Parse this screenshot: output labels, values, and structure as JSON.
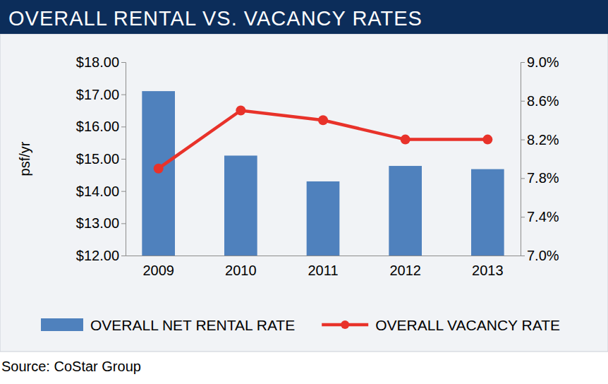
{
  "chart_data": {
    "type": "bar",
    "title": "OVERALL RENTAL VS. VACANCY RATES",
    "y_label": "psf/yr",
    "source": "Source: CoStar Group",
    "categories": [
      "2009",
      "2010",
      "2011",
      "2012",
      "2013"
    ],
    "series": [
      {
        "name": "OVERALL NET RENTAL RATE",
        "type": "bar",
        "color": "#4f81bd",
        "values": [
          17.1,
          15.1,
          14.3,
          14.78,
          14.68
        ]
      },
      {
        "name": "OVERALL VACANCY RATE",
        "type": "line",
        "axis": "y2",
        "color": "#e8322a",
        "marker": "circle",
        "values": [
          7.9,
          8.5,
          8.4,
          8.2,
          8.2
        ]
      }
    ],
    "ylim": [
      12,
      18
    ],
    "yticks": [
      {
        "value": 12,
        "label": "$12.00"
      },
      {
        "value": 13,
        "label": "$13.00"
      },
      {
        "value": 14,
        "label": "$14.00"
      },
      {
        "value": 15,
        "label": "$15.00"
      },
      {
        "value": 16,
        "label": "$16.00"
      },
      {
        "value": 17,
        "label": "$17.00"
      },
      {
        "value": 18,
        "label": "$18.00"
      }
    ],
    "y2lim": [
      7,
      9
    ],
    "y2ticks": [
      {
        "value": 7,
        "label": "7.0%"
      },
      {
        "value": 7.4,
        "label": "7.4%"
      },
      {
        "value": 7.8,
        "label": "7.8%"
      },
      {
        "value": 8.2,
        "label": "8.2%"
      },
      {
        "value": 8.6,
        "label": "8.6%"
      },
      {
        "value": 9,
        "label": "9.0%"
      }
    ],
    "grid": false,
    "legend": "bottom"
  }
}
